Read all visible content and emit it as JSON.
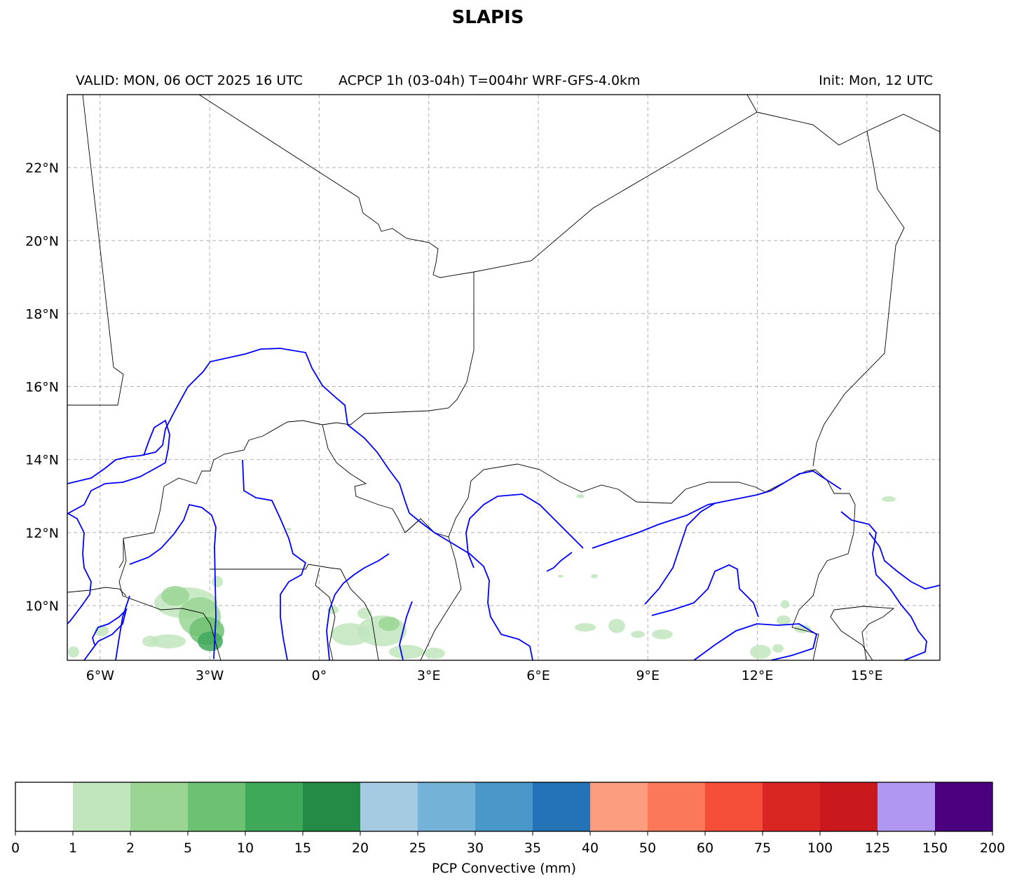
{
  "title": "SLAPIS",
  "header": {
    "valid": "VALID: MON, 06 OCT 2025 16 UTC",
    "product": "ACPCP 1h (03-04h) T=004hr WRF-GFS-4.0km",
    "init": "Init: Mon, 12 UTC"
  },
  "map": {
    "lon_range": [
      -6.9,
      17.0
    ],
    "lat_range": [
      8.5,
      24.0
    ],
    "lon_ticks": [
      "6°W",
      "3°W",
      "0°",
      "3°E",
      "6°E",
      "9°E",
      "12°E",
      "15°E"
    ],
    "lat_ticks": [
      "22°N",
      "20°N",
      "18°N",
      "16°N",
      "14°N",
      "12°N",
      "10°N"
    ],
    "gridlines": true,
    "border_color": "#000000",
    "river_color": "#0000ff"
  },
  "colorbar": {
    "label": "PCP Convective (mm)",
    "bounds": [
      "0",
      "1",
      "2",
      "5",
      "10",
      "15",
      "20",
      "25",
      "30",
      "35",
      "40",
      "50",
      "60",
      "75",
      "100",
      "125",
      "150",
      "200"
    ],
    "colors": [
      "#ffffff",
      "#c1e6bd",
      "#9ad594",
      "#6dc173",
      "#3fa95a",
      "#238b45",
      "#a4cbe2",
      "#75b2d8",
      "#4a98c9",
      "#2473b7",
      "#fc9d7f",
      "#fb7858",
      "#f44d38",
      "#da2623",
      "#c9191d",
      "#b098f2",
      "#4b0080"
    ]
  }
}
